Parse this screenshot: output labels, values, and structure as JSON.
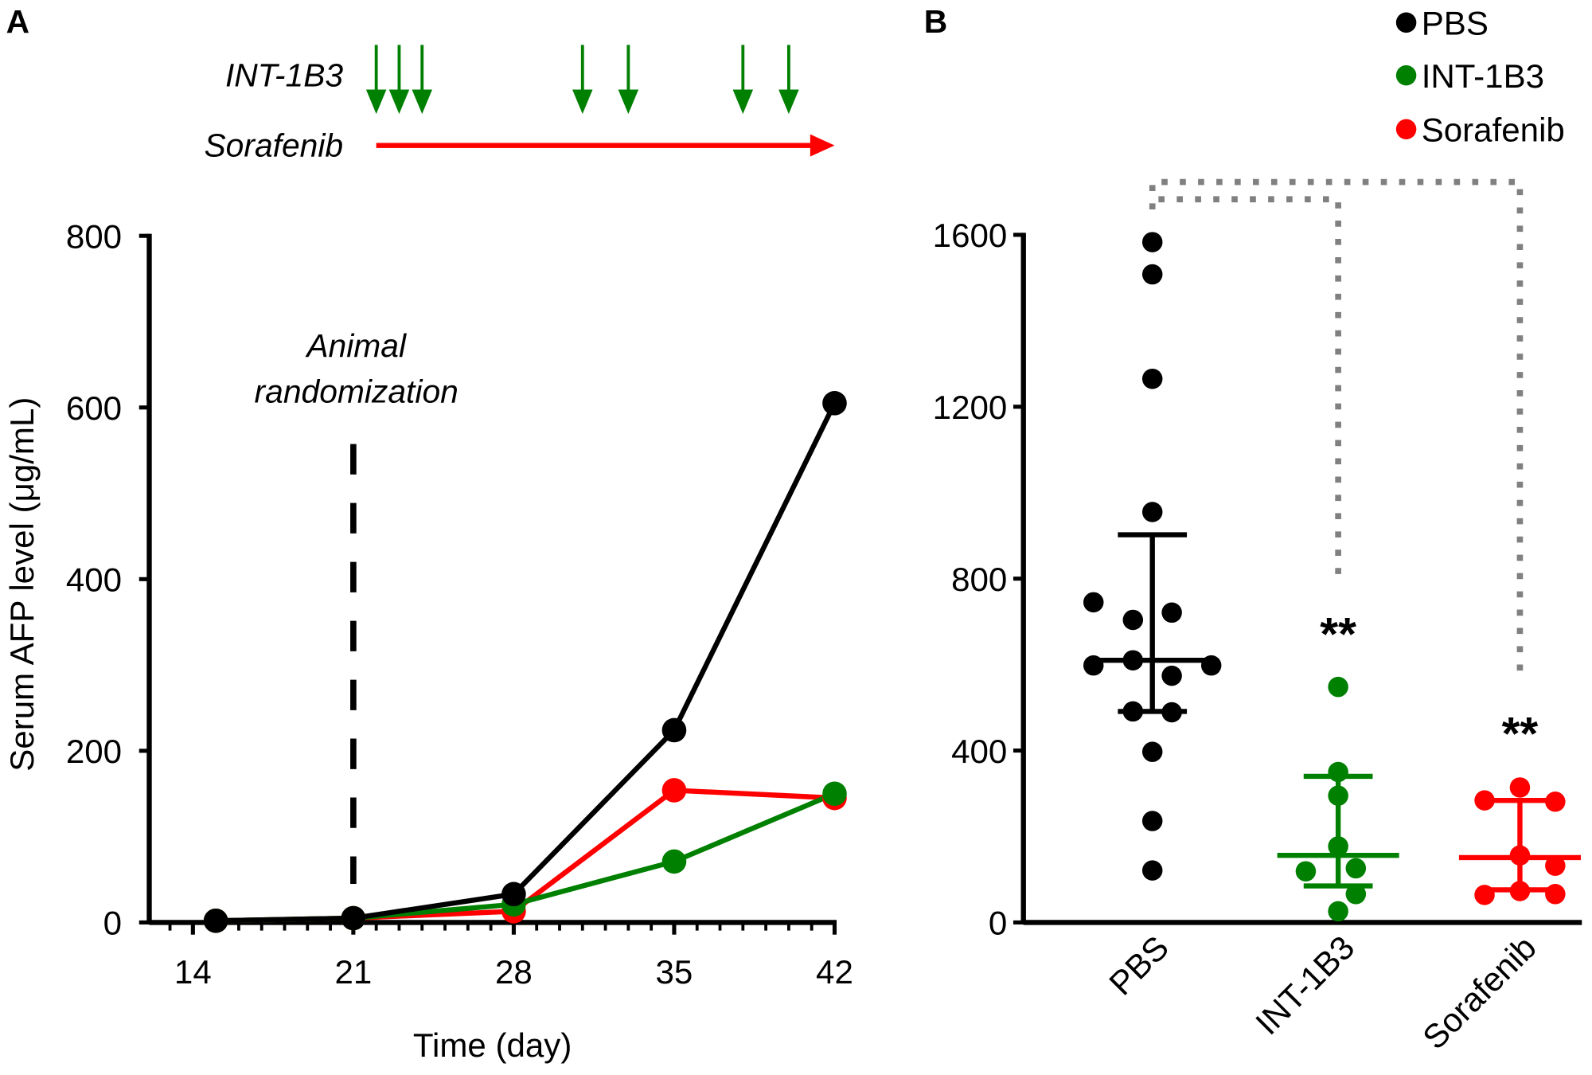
{
  "panel_labels": {
    "a": "A",
    "b": "B"
  },
  "colors": {
    "PBS": "#000000",
    "INT-1B3": "#008000",
    "Sorafenib": "#ff0000",
    "bracket": "#808080"
  },
  "chart_data": [
    {
      "type": "line",
      "panel": "A",
      "xlabel": "Time (day)",
      "ylabel": "Serum AFP level (μg/mL)",
      "x_ticks": [
        14,
        21,
        28,
        35,
        42
      ],
      "y_ticks": [
        0,
        200,
        400,
        600,
        800
      ],
      "xlim": [
        12,
        42
      ],
      "ylim": [
        0,
        800
      ],
      "x": [
        15,
        21,
        28,
        35,
        42
      ],
      "series": [
        {
          "name": "Sorafenib",
          "color": "#ff0000",
          "values": [
            2,
            5,
            13,
            154,
            145
          ]
        },
        {
          "name": "INT-1B3",
          "color": "#008000",
          "values": [
            2,
            5,
            21,
            71,
            150
          ]
        },
        {
          "name": "PBS",
          "color": "#000000",
          "values": [
            2,
            5,
            33,
            224,
            605
          ]
        }
      ],
      "annotation": {
        "text_line1": "Animal",
        "text_line2": "randomization",
        "x": 21
      },
      "schedule": {
        "int_label": "INT-1B3",
        "int_dose_days": [
          22,
          23,
          24,
          31,
          33,
          38,
          40
        ],
        "sorafenib_label": "Sorafenib",
        "sorafenib_range": [
          22,
          42
        ]
      }
    },
    {
      "type": "scatter",
      "panel": "B",
      "categories": [
        "PBS",
        "INT-1B3",
        "Sorafenib"
      ],
      "y_ticks": [
        0,
        400,
        800,
        1200,
        1600
      ],
      "ylim": [
        0,
        1600
      ],
      "legend": {
        "placement": "top-right",
        "entries": [
          "PBS",
          "INT-1B3",
          "Sorafenib"
        ]
      },
      "groups": [
        {
          "name": "PBS",
          "color": "#000000",
          "values": [
            1583,
            1508,
            1265,
            955,
            745,
            704,
            721,
            610,
            598,
            598,
            574,
            491,
            489,
            397,
            236,
            121
          ],
          "jitter": [
            0,
            0,
            0,
            0,
            -1,
            -0.33,
            0.33,
            -0.33,
            -1,
            1,
            0.33,
            -0.33,
            0.33,
            0,
            0,
            0
          ],
          "mean": 610,
          "err_low": 491,
          "err_high": 902,
          "significance": ""
        },
        {
          "name": "INT-1B3",
          "color": "#008000",
          "values": [
            548,
            350,
            295,
            177,
            119,
            126,
            66,
            26
          ],
          "jitter": [
            0,
            0,
            0,
            0,
            -0.55,
            0.3,
            0.3,
            0
          ],
          "mean": 156,
          "err_low": 85,
          "err_high": 340,
          "significance": "**"
        },
        {
          "name": "Sorafenib",
          "color": "#ff0000",
          "values": [
            314,
            284,
            281,
            156,
            132,
            73,
            64,
            66
          ],
          "jitter": [
            0,
            -0.6,
            0.6,
            0,
            0.6,
            0,
            -0.6,
            0.6
          ],
          "mean": 151,
          "err_low": 76,
          "err_high": 284,
          "significance": "**"
        }
      ]
    }
  ]
}
